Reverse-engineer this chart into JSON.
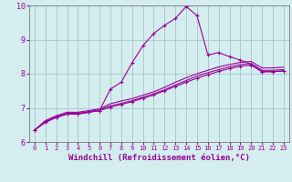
{
  "background_color": "#d4edef",
  "grid_color": "#aacdd0",
  "line_color": "#990099",
  "xlim": [
    -0.5,
    23.5
  ],
  "ylim": [
    6,
    10
  ],
  "xlabel": "Windchill (Refroidissement éolien,°C)",
  "xlabel_fontsize": 6.5,
  "yticks": [
    6,
    7,
    8,
    9,
    10
  ],
  "xticks": [
    0,
    1,
    2,
    3,
    4,
    5,
    6,
    7,
    8,
    9,
    10,
    11,
    12,
    13,
    14,
    15,
    16,
    17,
    18,
    19,
    20,
    21,
    22,
    23
  ],
  "series": [
    {
      "x": [
        0,
        1,
        2,
        3,
        4,
        5,
        6,
        7,
        8,
        9,
        10,
        11,
        12,
        13,
        14,
        15,
        16,
        17,
        18,
        19,
        20,
        21,
        22,
        23
      ],
      "y": [
        6.35,
        6.58,
        6.72,
        6.82,
        6.82,
        6.87,
        6.92,
        7.02,
        7.1,
        7.18,
        7.28,
        7.38,
        7.5,
        7.63,
        7.75,
        7.87,
        7.97,
        8.07,
        8.15,
        8.22,
        8.25,
        8.06,
        8.06,
        8.08
      ],
      "marker": "+"
    },
    {
      "x": [
        0,
        1,
        2,
        3,
        4,
        5,
        6,
        7,
        8,
        9,
        10,
        11,
        12,
        13,
        14,
        15,
        16,
        17,
        18,
        19,
        20,
        21,
        22,
        23
      ],
      "y": [
        6.35,
        6.6,
        6.74,
        6.84,
        6.84,
        6.89,
        6.94,
        7.06,
        7.13,
        7.21,
        7.31,
        7.41,
        7.53,
        7.67,
        7.8,
        7.93,
        8.03,
        8.12,
        8.2,
        8.27,
        8.3,
        8.1,
        8.1,
        8.12
      ],
      "marker": null
    },
    {
      "x": [
        0,
        1,
        2,
        3,
        4,
        5,
        6,
        7,
        8,
        9,
        10,
        11,
        12,
        13,
        14,
        15,
        16,
        17,
        18,
        19,
        20,
        21,
        22,
        23
      ],
      "y": [
        6.35,
        6.63,
        6.77,
        6.87,
        6.87,
        6.92,
        6.97,
        7.12,
        7.2,
        7.27,
        7.37,
        7.47,
        7.6,
        7.75,
        7.88,
        8.0,
        8.1,
        8.2,
        8.27,
        8.33,
        8.36,
        8.17,
        8.17,
        8.19
      ],
      "marker": null
    },
    {
      "x": [
        0,
        1,
        2,
        3,
        4,
        5,
        6,
        7,
        8,
        9,
        10,
        11,
        12,
        13,
        14,
        15,
        16,
        17,
        18,
        19,
        20,
        21,
        22,
        23
      ],
      "y": [
        6.35,
        6.58,
        6.72,
        6.82,
        6.82,
        6.87,
        6.92,
        7.55,
        7.75,
        8.32,
        8.82,
        9.18,
        9.42,
        9.62,
        9.97,
        9.7,
        8.55,
        8.62,
        8.5,
        8.4,
        8.28,
        8.06,
        8.06,
        8.08
      ],
      "marker": "+"
    }
  ]
}
